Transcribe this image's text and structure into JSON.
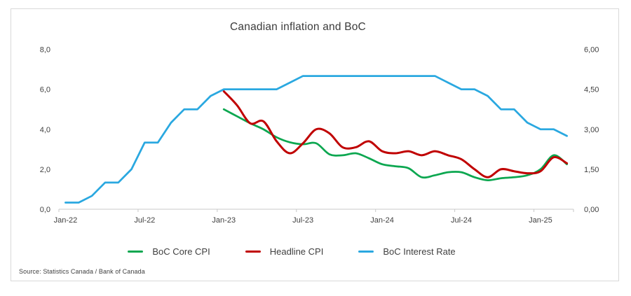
{
  "title": "Canadian inflation and BoC",
  "source": "Source: Statistics Canada / Bank of Canada",
  "colors": {
    "core_cpi": "#0ca750",
    "headline_cpi": "#c00000",
    "interest_rate": "#2aa8e0",
    "axis_line": "#c8c8c8",
    "text": "#404040",
    "card_border": "#d9d9d9"
  },
  "legend": [
    {
      "label": "BoC Core CPI",
      "color": "#0ca750"
    },
    {
      "label": "Headline CPI",
      "color": "#c00000"
    },
    {
      "label": "BoC Interest Rate",
      "color": "#2aa8e0"
    }
  ],
  "chart_data": {
    "type": "line",
    "title": "Canadian inflation and BoC",
    "x_categories": [
      "Jan-22",
      "Feb-22",
      "Mar-22",
      "Apr-22",
      "May-22",
      "Jun-22",
      "Jul-22",
      "Aug-22",
      "Sep-22",
      "Oct-22",
      "Nov-22",
      "Dec-22",
      "Jan-23",
      "Feb-23",
      "Mar-23",
      "Apr-23",
      "May-23",
      "Jun-23",
      "Jul-23",
      "Aug-23",
      "Sep-23",
      "Oct-23",
      "Nov-23",
      "Dec-23",
      "Jan-24",
      "Feb-24",
      "Mar-24",
      "Apr-24",
      "May-24",
      "Jun-24",
      "Jul-24",
      "Aug-24",
      "Sep-24",
      "Oct-24",
      "Nov-24",
      "Dec-24",
      "Jan-25",
      "Feb-25",
      "Mar-25"
    ],
    "x_tick_labels": [
      "Jan-22",
      "Jul-22",
      "Jan-23",
      "Jul-23",
      "Jan-24",
      "Jul-24",
      "Jan-25"
    ],
    "x_tick_indices": [
      0,
      6,
      12,
      18,
      24,
      30,
      36
    ],
    "left_axis": {
      "min": 0,
      "max": 8,
      "tick_values": [
        0,
        2,
        4,
        6,
        8
      ],
      "tick_labels": [
        "0,0",
        "2,0",
        "4,0",
        "6,0",
        "8,0"
      ]
    },
    "right_axis": {
      "min": 0,
      "max": 6,
      "tick_values": [
        0,
        1.5,
        3,
        4.5,
        6
      ],
      "tick_labels": [
        "0,00",
        "1,50",
        "3,00",
        "4,50",
        "6,00"
      ]
    },
    "grid": false,
    "legend_position": "bottom",
    "series": [
      {
        "name": "BoC Core CPI",
        "axis": "left",
        "color": "#0ca750",
        "smooth": true,
        "values": [
          null,
          null,
          null,
          null,
          null,
          null,
          null,
          null,
          null,
          null,
          null,
          null,
          5.0,
          4.65,
          4.3,
          4.0,
          3.6,
          3.35,
          3.25,
          3.3,
          2.75,
          2.7,
          2.8,
          2.55,
          2.25,
          2.15,
          2.05,
          1.6,
          1.7,
          1.85,
          1.85,
          1.6,
          1.45,
          1.55,
          1.6,
          1.7,
          2.0,
          2.7,
          2.25
        ]
      },
      {
        "name": "Headline CPI",
        "axis": "left",
        "color": "#c00000",
        "smooth": true,
        "values": [
          null,
          null,
          null,
          null,
          null,
          null,
          null,
          null,
          null,
          null,
          null,
          null,
          5.9,
          5.2,
          4.3,
          4.4,
          3.4,
          2.8,
          3.3,
          4.0,
          3.8,
          3.1,
          3.1,
          3.4,
          2.9,
          2.8,
          2.9,
          2.7,
          2.9,
          2.7,
          2.5,
          2.0,
          1.6,
          2.0,
          1.9,
          1.8,
          1.9,
          2.6,
          2.3
        ]
      },
      {
        "name": "BoC Interest Rate",
        "axis": "right",
        "color": "#2aa8e0",
        "smooth": false,
        "values": [
          0.25,
          0.25,
          0.5,
          1.0,
          1.0,
          1.5,
          2.5,
          2.5,
          3.25,
          3.75,
          3.75,
          4.25,
          4.5,
          4.5,
          4.5,
          4.5,
          4.5,
          4.75,
          5.0,
          5.0,
          5.0,
          5.0,
          5.0,
          5.0,
          5.0,
          5.0,
          5.0,
          5.0,
          5.0,
          4.75,
          4.5,
          4.5,
          4.25,
          3.75,
          3.75,
          3.25,
          3.0,
          3.0,
          2.75
        ]
      }
    ]
  }
}
